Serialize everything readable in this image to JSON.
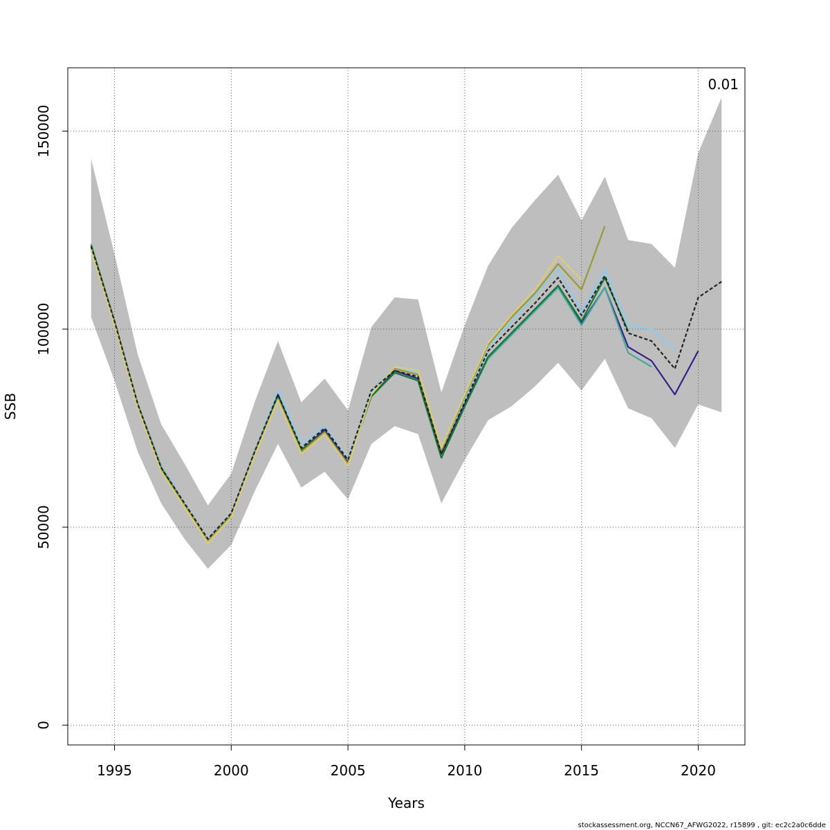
{
  "chart_data": {
    "type": "line",
    "title": "",
    "xlabel": "Years",
    "ylabel": "SSB",
    "xlim": [
      1993,
      2022
    ],
    "ylim": [
      -5000,
      166000
    ],
    "x_ticks": [
      1995,
      2000,
      2005,
      2010,
      2015,
      2020
    ],
    "y_ticks": [
      0,
      50000,
      100000,
      150000
    ],
    "grid": true,
    "annotation": "0.01",
    "confidence_band": {
      "x": [
        1994,
        1995,
        1996,
        1997,
        1998,
        1999,
        2000,
        2001,
        2002,
        2003,
        2004,
        2005,
        2006,
        2007,
        2008,
        2009,
        2010,
        2011,
        2012,
        2013,
        2014,
        2015,
        2016,
        2017,
        2018,
        2019,
        2020,
        2021
      ],
      "lower": [
        103000,
        87000,
        69000,
        56000,
        47000,
        39500,
        45500,
        59000,
        71000,
        60000,
        64000,
        57000,
        71000,
        75500,
        73500,
        56000,
        67000,
        77000,
        80500,
        85500,
        91500,
        84500,
        92500,
        80000,
        77500,
        70000,
        81000,
        79000
      ],
      "upper": [
        143000,
        119000,
        93500,
        76000,
        66000,
        55500,
        63500,
        81500,
        97000,
        81500,
        87500,
        79500,
        100500,
        108000,
        107500,
        84000,
        101000,
        116000,
        125500,
        132500,
        139000,
        127500,
        138500,
        122500,
        121500,
        115500,
        144500,
        158500
      ]
    },
    "series": [
      {
        "color": "#332288",
        "dashed": false,
        "x": [
          1994,
          1995,
          1996,
          1997,
          1998,
          1999,
          2000,
          2001,
          2002,
          2003,
          2004,
          2005,
          2006,
          2007,
          2008,
          2009,
          2010,
          2011,
          2012,
          2013,
          2014,
          2015,
          2016,
          2017,
          2018,
          2019,
          2020
        ],
        "values": [
          121000,
          102000,
          81000,
          65500,
          56000,
          47000,
          53500,
          69000,
          83500,
          69500,
          74500,
          66500,
          83500,
          89500,
          87500,
          68500,
          81000,
          93000,
          99000,
          105000,
          111000,
          101500,
          110500,
          95500,
          92000,
          83500,
          94500
        ]
      },
      {
        "color": "#88CCEE",
        "dashed": false,
        "x": [
          1994,
          1995,
          1996,
          1997,
          1998,
          1999,
          2000,
          2001,
          2002,
          2003,
          2004,
          2005,
          2006,
          2007,
          2008,
          2009,
          2010,
          2011,
          2012,
          2013,
          2014,
          2015,
          2016,
          2017,
          2018,
          2019
        ],
        "values": [
          121500,
          102000,
          81000,
          65500,
          56000,
          47000,
          53500,
          69000,
          84500,
          71000,
          75500,
          67000,
          84500,
          90500,
          89000,
          69500,
          82500,
          95500,
          102000,
          108500,
          115000,
          104500,
          115000,
          101000,
          100000,
          95000
        ]
      },
      {
        "color": "#44AA99",
        "dashed": false,
        "x": [
          1994,
          1995,
          1996,
          1997,
          1998,
          1999,
          2000,
          2001,
          2002,
          2003,
          2004,
          2005,
          2006,
          2007,
          2008,
          2009,
          2010,
          2011,
          2012,
          2013,
          2014,
          2015,
          2016,
          2017,
          2018
        ],
        "values": [
          121500,
          102000,
          81000,
          65000,
          55500,
          46500,
          53000,
          69000,
          83000,
          69500,
          74000,
          66000,
          83000,
          89000,
          87000,
          67500,
          80500,
          92500,
          98500,
          104500,
          110500,
          101000,
          110500,
          94000,
          90500
        ]
      },
      {
        "color": "#117733",
        "dashed": false,
        "x": [
          1994,
          1995,
          1996,
          1997,
          1998,
          1999,
          2000,
          2001,
          2002,
          2003,
          2004,
          2005,
          2006,
          2007,
          2008,
          2009,
          2010,
          2011,
          2012,
          2013,
          2014,
          2015,
          2016,
          2017
        ],
        "values": [
          121000,
          102000,
          80500,
          65000,
          55500,
          46500,
          53000,
          68500,
          83000,
          69500,
          74000,
          66000,
          83000,
          89000,
          87000,
          67500,
          80500,
          93000,
          99000,
          105000,
          111000,
          102000,
          113000,
          99500
        ]
      },
      {
        "color": "#999933",
        "dashed": false,
        "x": [
          1994,
          1995,
          1996,
          1997,
          1998,
          1999,
          2000,
          2001,
          2002,
          2003,
          2004,
          2005,
          2006,
          2007,
          2008,
          2009,
          2010,
          2011,
          2012,
          2013,
          2014,
          2015,
          2016
        ],
        "values": [
          120500,
          101500,
          80500,
          64500,
          55500,
          46500,
          53000,
          68500,
          82500,
          69000,
          74000,
          66000,
          83500,
          90000,
          88500,
          69500,
          83000,
          96000,
          103000,
          109000,
          116500,
          110000,
          126000
        ]
      },
      {
        "color": "#DDCC77",
        "dashed": false,
        "x": [
          1994,
          1995,
          1996,
          1997,
          1998,
          1999,
          2000,
          2001,
          2002,
          2003,
          2004,
          2005,
          2006,
          2007,
          2008,
          2009,
          2010,
          2011,
          2012,
          2013,
          2014,
          2015
        ],
        "values": [
          120000,
          101000,
          80000,
          64000,
          55000,
          46000,
          52500,
          68000,
          82000,
          68500,
          73500,
          65500,
          83500,
          90500,
          89500,
          70000,
          83500,
          96500,
          103500,
          110000,
          118500,
          112500
        ]
      },
      {
        "color": "#222222",
        "dashed": true,
        "x": [
          1994,
          1995,
          1996,
          1997,
          1998,
          1999,
          2000,
          2001,
          2002,
          2003,
          2004,
          2005,
          2006,
          2007,
          2008,
          2009,
          2010,
          2011,
          2012,
          2013,
          2014,
          2015,
          2016,
          2017,
          2018,
          2019,
          2020,
          2021
        ],
        "values": [
          121000,
          102000,
          81000,
          65000,
          56000,
          47000,
          53500,
          69000,
          83500,
          70000,
          75000,
          67000,
          84500,
          89500,
          88000,
          68500,
          81500,
          94500,
          100500,
          106500,
          113000,
          103500,
          113500,
          99000,
          97000,
          90000,
          108000,
          112000
        ]
      }
    ]
  },
  "footer": {
    "text": "stockassessment.org, NCCN67_AFWG2022, r15899 , git: ec2c2a0c6dde"
  }
}
